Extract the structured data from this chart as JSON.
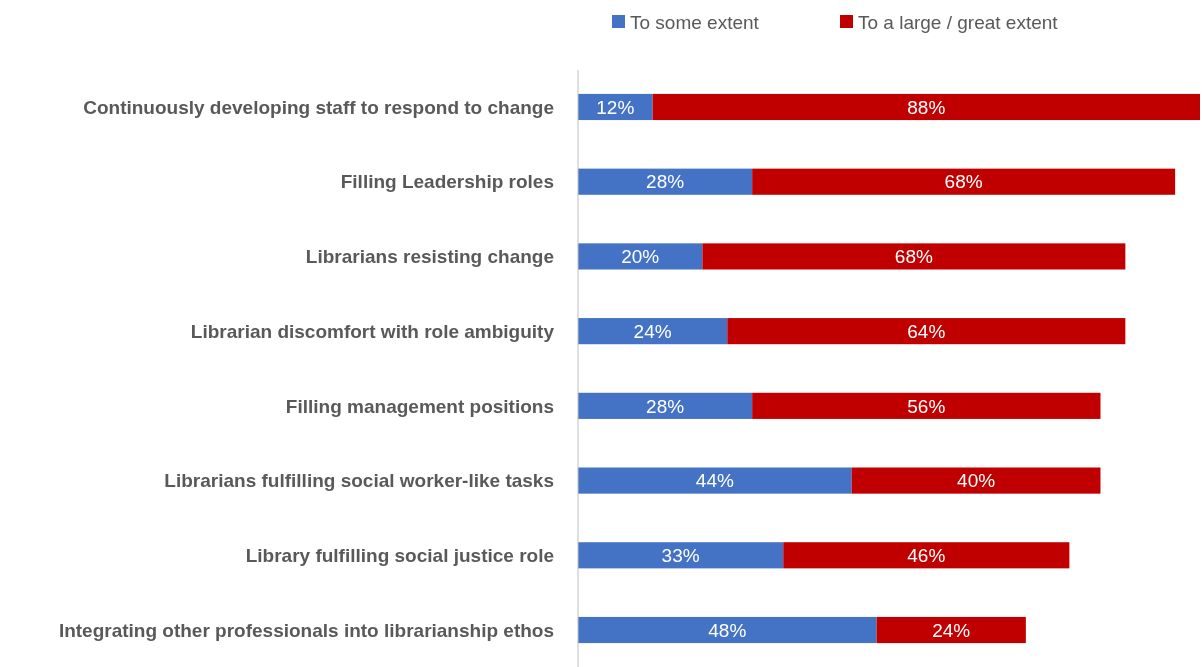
{
  "chart_data": {
    "type": "bar",
    "orientation": "horizontal",
    "stacked": true,
    "legend": "top",
    "grid": false,
    "categories": [
      "Continuously developing staff to respond to change",
      "Filling Leadership roles",
      "Librarians resisting change",
      "Librarian discomfort with role ambiguity",
      "Filling management positions",
      "Librarians fulfilling social worker-like tasks",
      "Library fulfilling social justice role",
      "Integrating other professionals into librarianship ethos"
    ],
    "series": [
      {
        "name": "To some extent",
        "color": "#4472c4",
        "values": [
          12,
          28,
          20,
          24,
          28,
          44,
          33,
          48
        ],
        "value_labels": [
          "12%",
          "28%",
          "20%",
          "24%",
          "28%",
          "44%",
          "33%",
          "48%"
        ]
      },
      {
        "name": "To a large / great extent",
        "color": "#c00000",
        "values": [
          88,
          68,
          68,
          64,
          56,
          40,
          46,
          24
        ],
        "value_labels": [
          "88%",
          "68%",
          "68%",
          "64%",
          "56%",
          "40%",
          "46%",
          "24%"
        ]
      }
    ]
  }
}
